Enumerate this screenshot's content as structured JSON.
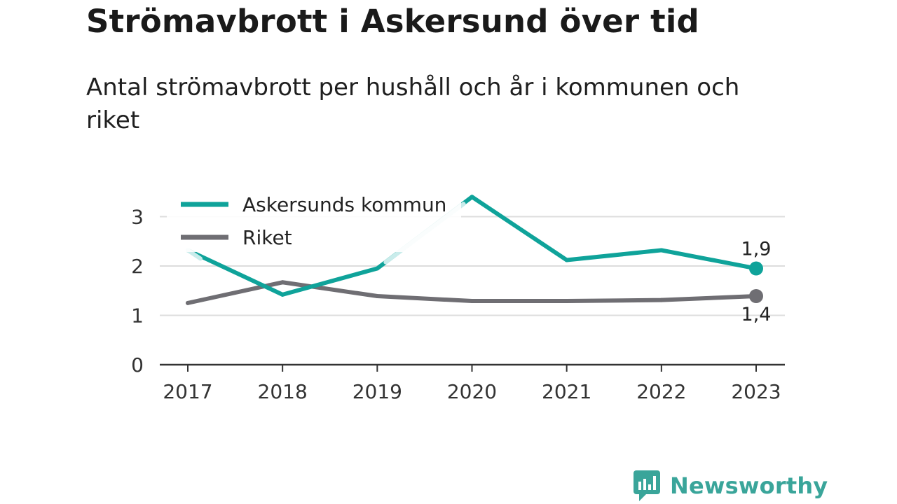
{
  "title": "Strömavbrott i Askersund över tid",
  "subtitle": "Antal strömavbrott per hushåll och år i kommunen och riket",
  "brand": {
    "name": "Newsworthy",
    "icon": "newsworthy-logo-icon"
  },
  "colors": {
    "kommun": "#0fa39a",
    "kommun_faded": "#c9eceb",
    "riket": "#6f6e73",
    "grid": "#dddddd",
    "axis": "#333333"
  },
  "chart_data": {
    "type": "line",
    "x": [
      "2017",
      "2018",
      "2019",
      "2020",
      "2021",
      "2022",
      "2023"
    ],
    "ylim": [
      0,
      3.5
    ],
    "yticks": [
      "0",
      "1",
      "2",
      "3"
    ],
    "ytick_values": [
      0,
      1,
      2,
      3
    ],
    "grid": true,
    "legend_position": "top-left",
    "series": [
      {
        "name": "Askersunds kommun",
        "values": [
          2.32,
          1.42,
          1.95,
          3.4,
          2.12,
          2.32,
          1.95
        ],
        "end_label": "1,9"
      },
      {
        "name": "Riket",
        "values": [
          1.25,
          1.67,
          1.39,
          1.29,
          1.29,
          1.31,
          1.39
        ],
        "end_label": "1,4"
      }
    ]
  }
}
